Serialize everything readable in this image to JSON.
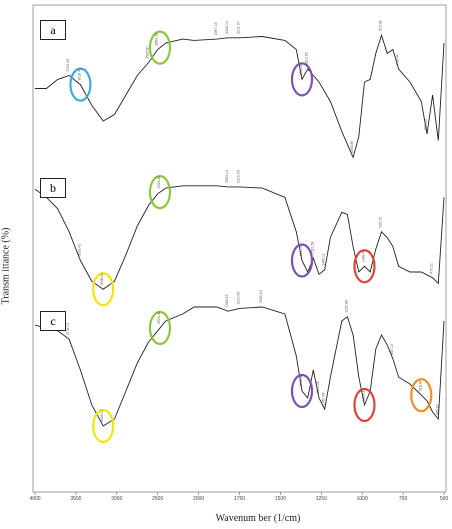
{
  "chart_data": {
    "type": "line",
    "panels": [
      {
        "label": "a",
        "x": [
          4000,
          3900,
          3800,
          3700,
          3600,
          3500,
          3400,
          3300,
          3200,
          3100,
          3000,
          2920,
          2850,
          2700,
          2600,
          2400,
          2300,
          2200,
          2000,
          1800,
          1700,
          1650,
          1600,
          1500,
          1400,
          1300,
          1200,
          1150,
          1100,
          1050,
          1000,
          950,
          900,
          850,
          800,
          700,
          600,
          550,
          500,
          450,
          400
        ],
        "y": [
          0.55,
          0.55,
          0.62,
          0.65,
          0.58,
          0.42,
          0.3,
          0.35,
          0.5,
          0.65,
          0.75,
          0.85,
          0.9,
          0.93,
          0.92,
          0.93,
          0.94,
          0.94,
          0.95,
          0.92,
          0.85,
          0.62,
          0.7,
          0.6,
          0.45,
          0.22,
          0.02,
          0.18,
          0.6,
          0.62,
          0.82,
          0.96,
          0.82,
          0.85,
          0.7,
          0.6,
          0.45,
          0.2,
          0.5,
          0.15,
          0.9
        ],
        "peak_labels": [
          {
            "x": 3700,
            "label": "3704.05"
          },
          {
            "x": 3600,
            "label": "3618.41"
          },
          {
            "x": 3000,
            "label": "2925.87"
          },
          {
            "x": 2920,
            "label": "2853.28"
          },
          {
            "x": 2400,
            "label": "2367.15"
          },
          {
            "x": 2300,
            "label": "2342.14"
          },
          {
            "x": 2200,
            "label": "2211.37"
          },
          {
            "x": 1650,
            "label": "1655.64"
          },
          {
            "x": 1600,
            "label": "1612.89"
          },
          {
            "x": 1200,
            "label": "1084.89"
          },
          {
            "x": 950,
            "label": "912.08"
          },
          {
            "x": 800,
            "label": "798.44"
          },
          {
            "x": 550,
            "label": "539.44"
          }
        ],
        "highlights": [
          {
            "x": 3600,
            "color": "#3aaed8"
          },
          {
            "x": 2900,
            "color": "#8dc63f"
          },
          {
            "x": 1650,
            "color": "#7a52b3"
          }
        ]
      },
      {
        "label": "b",
        "x": [
          4000,
          3900,
          3800,
          3700,
          3600,
          3500,
          3400,
          3300,
          3200,
          3100,
          3000,
          2920,
          2850,
          2700,
          2600,
          2400,
          2300,
          2200,
          2000,
          1800,
          1700,
          1650,
          1600,
          1550,
          1500,
          1450,
          1400,
          1300,
          1250,
          1200,
          1150,
          1100,
          1050,
          1000,
          950,
          900,
          850,
          800,
          700,
          600,
          500,
          450,
          400
        ],
        "y": [
          0.92,
          0.85,
          0.75,
          0.55,
          0.3,
          0.12,
          0.05,
          0.12,
          0.35,
          0.6,
          0.78,
          0.88,
          0.93,
          0.95,
          0.95,
          0.95,
          0.94,
          0.94,
          0.93,
          0.85,
          0.55,
          0.3,
          0.2,
          0.32,
          0.18,
          0.22,
          0.5,
          0.72,
          0.7,
          0.42,
          0.2,
          0.25,
          0.2,
          0.4,
          0.55,
          0.5,
          0.42,
          0.25,
          0.2,
          0.2,
          0.15,
          0.1,
          0.85
        ],
        "peak_labels": [
          {
            "x": 3600,
            "label": "3618.41"
          },
          {
            "x": 3400,
            "label": "3436.21"
          },
          {
            "x": 2900,
            "label": "2924.42"
          },
          {
            "x": 2300,
            "label": "2363.14"
          },
          {
            "x": 2200,
            "label": "2316.53"
          },
          {
            "x": 1650,
            "label": "1641.51"
          },
          {
            "x": 1550,
            "label": "1521.58"
          },
          {
            "x": 1450,
            "label": "1460.11"
          },
          {
            "x": 1100,
            "label": "1089.45"
          },
          {
            "x": 950,
            "label": "925.16"
          },
          {
            "x": 500,
            "label": "476.21"
          }
        ],
        "highlights": [
          {
            "x": 3400,
            "color": "#f2e40c"
          },
          {
            "x": 2900,
            "color": "#8dc63f"
          },
          {
            "x": 1650,
            "color": "#7a52b3"
          },
          {
            "x": 1100,
            "color": "#d9453a"
          }
        ]
      },
      {
        "label": "c",
        "x": [
          4000,
          3900,
          3800,
          3700,
          3600,
          3500,
          3400,
          3300,
          3200,
          3100,
          3000,
          2920,
          2850,
          2700,
          2600,
          2400,
          2300,
          2200,
          2000,
          1800,
          1700,
          1650,
          1600,
          1550,
          1500,
          1450,
          1400,
          1300,
          1250,
          1200,
          1150,
          1100,
          1050,
          1000,
          950,
          900,
          850,
          800,
          700,
          600,
          550,
          500,
          450,
          400
        ],
        "y": [
          0.82,
          0.8,
          0.78,
          0.72,
          0.5,
          0.25,
          0.1,
          0.15,
          0.35,
          0.55,
          0.7,
          0.78,
          0.85,
          0.9,
          0.95,
          0.95,
          0.92,
          0.94,
          0.95,
          0.9,
          0.6,
          0.35,
          0.3,
          0.5,
          0.3,
          0.22,
          0.45,
          0.85,
          0.88,
          0.75,
          0.45,
          0.25,
          0.35,
          0.65,
          0.75,
          0.68,
          0.58,
          0.45,
          0.4,
          0.32,
          0.28,
          0.2,
          0.15,
          0.85
        ],
        "peak_labels": [
          {
            "x": 3700,
            "label": "3744.74"
          },
          {
            "x": 3400,
            "label": "3409.17"
          },
          {
            "x": 2900,
            "label": "2924.42"
          },
          {
            "x": 2300,
            "label": "2369.43"
          },
          {
            "x": 2200,
            "label": "2316.53"
          },
          {
            "x": 2000,
            "label": "2085.24"
          },
          {
            "x": 1650,
            "label": "1642.43"
          },
          {
            "x": 1500,
            "label": "1513.35"
          },
          {
            "x": 1450,
            "label": "1457.58"
          },
          {
            "x": 1250,
            "label": "1232.89"
          },
          {
            "x": 1100,
            "label": "1080.19"
          },
          {
            "x": 850,
            "label": "847.13"
          },
          {
            "x": 600,
            "label": "618.94"
          },
          {
            "x": 450,
            "label": "449.23"
          }
        ],
        "highlights": [
          {
            "x": 3400,
            "color": "#f2e40c"
          },
          {
            "x": 2900,
            "color": "#8dc63f"
          },
          {
            "x": 1650,
            "color": "#7a52b3"
          },
          {
            "x": 1100,
            "color": "#d9453a"
          },
          {
            "x": 600,
            "color": "#f28c28"
          }
        ]
      }
    ],
    "xlabel": "Wavenum ber (1/cm)",
    "ylabel": "Transm ittance (%)",
    "x_ticks": [
      "4000",
      "3500",
      "3000",
      "2500",
      "2000",
      "1750",
      "1500",
      "1250",
      "1000",
      "750",
      "500"
    ],
    "xlim": [
      4000,
      400
    ],
    "grid": false
  }
}
